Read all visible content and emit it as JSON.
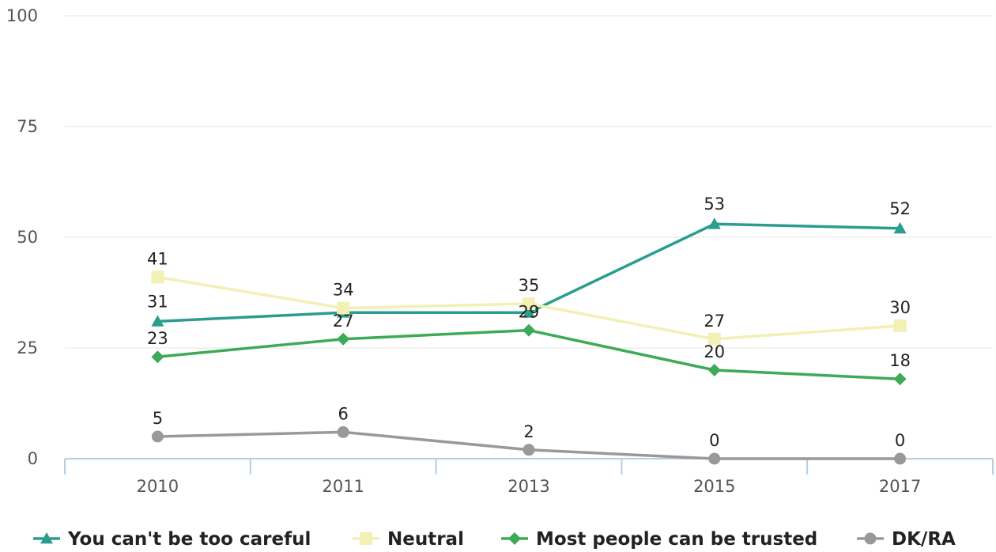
{
  "chart_data": {
    "type": "line",
    "categories": [
      "2010",
      "2011",
      "2013",
      "2015",
      "2017"
    ],
    "ylim": [
      0,
      100
    ],
    "yticks": [
      0,
      25,
      50,
      75,
      100
    ],
    "grid": true,
    "legend_position": "bottom",
    "series": [
      {
        "name": "You can't be too careful",
        "values": [
          31,
          33,
          33,
          53,
          52
        ],
        "labels": [
          "31",
          "",
          "",
          "53",
          "52"
        ],
        "color": "#2a9d8f",
        "marker": "triangle"
      },
      {
        "name": "Neutral",
        "values": [
          41,
          34,
          35,
          27,
          30
        ],
        "labels": [
          "41",
          "34",
          "35",
          "27",
          "30"
        ],
        "color": "#f2f0b5",
        "marker": "square"
      },
      {
        "name": "Most people can be trusted",
        "values": [
          23,
          27,
          29,
          20,
          18
        ],
        "labels": [
          "23",
          "27",
          "29",
          "20",
          "18"
        ],
        "color": "#3daa57",
        "marker": "diamond"
      },
      {
        "name": "DK/RA",
        "values": [
          5,
          6,
          2,
          0,
          0
        ],
        "labels": [
          "5",
          "6",
          "2",
          "0",
          "0"
        ],
        "color": "#999999",
        "marker": "circle"
      }
    ]
  }
}
